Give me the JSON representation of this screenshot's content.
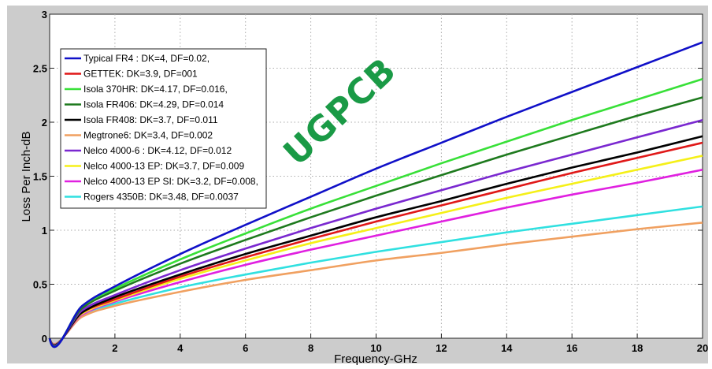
{
  "chart_data": {
    "type": "line",
    "title": "",
    "xlabel": "Frequency-GHz",
    "ylabel": "Loss Per Inch-dB",
    "xlim": [
      0,
      20
    ],
    "ylim": [
      0,
      3
    ],
    "xticks": [
      2,
      4,
      6,
      8,
      10,
      12,
      14,
      16,
      18,
      20
    ],
    "yticks": [
      0,
      0.5,
      1,
      1.5,
      2,
      2.5,
      3
    ],
    "ytick_labels": [
      "0",
      "0.5",
      "1",
      "1.5",
      "2",
      "2.5",
      "3"
    ],
    "grid": true,
    "legend_position": "upper left",
    "watermark": "UGPCB",
    "x": [
      0,
      1,
      2,
      4,
      6,
      8,
      10,
      12,
      14,
      16,
      18,
      20
    ],
    "series": [
      {
        "name": "Typical FR4 : DK=4, DF=0.02,",
        "color": "#1010c8",
        "values": [
          0,
          0.3,
          0.48,
          0.78,
          1.05,
          1.31,
          1.57,
          1.81,
          2.05,
          2.28,
          2.51,
          2.74
        ]
      },
      {
        "name": "GETTEK: DK=3.9, DF=001",
        "color": "#e01818",
        "values": [
          0,
          0.24,
          0.36,
          0.57,
          0.75,
          0.92,
          1.08,
          1.23,
          1.38,
          1.53,
          1.67,
          1.81
        ]
      },
      {
        "name": "Isola 370HR: DK=4.17, DF=0.016,",
        "color": "#38e038",
        "values": [
          0,
          0.3,
          0.46,
          0.73,
          0.97,
          1.2,
          1.41,
          1.62,
          1.82,
          2.02,
          2.21,
          2.4
        ]
      },
      {
        "name": "Isola FR406: DK=4.29, DF=0.014",
        "color": "#1e7a1e",
        "values": [
          0,
          0.28,
          0.44,
          0.69,
          0.91,
          1.12,
          1.32,
          1.51,
          1.7,
          1.88,
          2.06,
          2.23
        ]
      },
      {
        "name": "Isola FR408: DK=3.7, DF=0.011",
        "color": "#000000",
        "values": [
          0,
          0.24,
          0.38,
          0.59,
          0.78,
          0.95,
          1.12,
          1.27,
          1.43,
          1.58,
          1.72,
          1.87
        ]
      },
      {
        "name": "Megtrone6: DK=3.4, DF=0.002",
        "color": "#f0a060",
        "values": [
          0,
          0.2,
          0.3,
          0.43,
          0.54,
          0.63,
          0.72,
          0.79,
          0.87,
          0.94,
          1.01,
          1.07
        ]
      },
      {
        "name": "Nelco 4000-6 : DK=4.12, DF=0.012",
        "color": "#7a28d0",
        "values": [
          0,
          0.26,
          0.4,
          0.63,
          0.83,
          1.02,
          1.2,
          1.37,
          1.54,
          1.7,
          1.86,
          2.02
        ]
      },
      {
        "name": "Nelco 4000-13 EP: DK=3.7, DF=0.009",
        "color": "#f5f018",
        "values": [
          0,
          0.23,
          0.35,
          0.55,
          0.72,
          0.88,
          1.02,
          1.16,
          1.3,
          1.43,
          1.56,
          1.69
        ]
      },
      {
        "name": "Nelco 4000-13 EP SI: DK=3.2, DF=0.008,",
        "color": "#e020e0",
        "values": [
          0,
          0.22,
          0.34,
          0.52,
          0.68,
          0.82,
          0.95,
          1.08,
          1.21,
          1.33,
          1.44,
          1.56
        ]
      },
      {
        "name": "Rogers 4350B: DK=3.48, DF=0.0037",
        "color": "#30e0e0",
        "values": [
          0,
          0.22,
          0.32,
          0.47,
          0.59,
          0.7,
          0.8,
          0.89,
          0.98,
          1.06,
          1.14,
          1.22
        ]
      }
    ]
  }
}
